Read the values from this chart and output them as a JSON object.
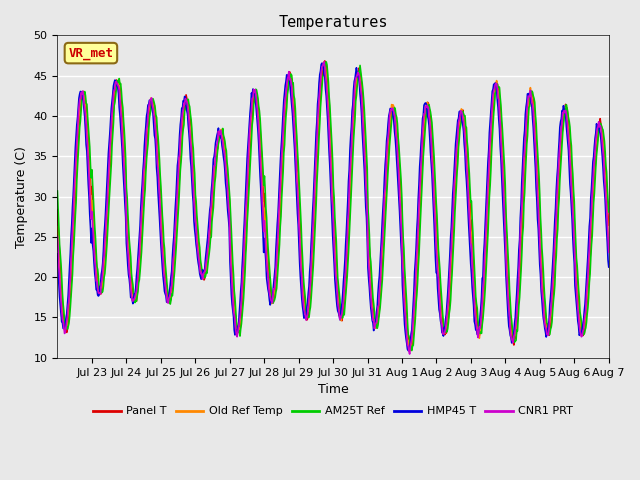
{
  "title": "Temperatures",
  "xlabel": "Time",
  "ylabel": "Temperature (C)",
  "ylim": [
    10,
    50
  ],
  "yticks": [
    10,
    15,
    20,
    25,
    30,
    35,
    40,
    45,
    50
  ],
  "background_color": "#e8e8e8",
  "plot_bg_color": "#e8e8e8",
  "grid_color": "white",
  "annotation_text": "VR_met",
  "annotation_color": "#cc0000",
  "annotation_bg": "#ffff99",
  "annotation_border": "#8B6914",
  "series": [
    "Panel T",
    "Old Ref Temp",
    "AM25T Ref",
    "HMP45 T",
    "CNR1 PRT"
  ],
  "colors": [
    "#dd0000",
    "#ff8800",
    "#00cc00",
    "#0000dd",
    "#cc00cc"
  ],
  "n_days": 16,
  "samples_per_day": 48,
  "xtick_positions": [
    1,
    2,
    3,
    4,
    5,
    6,
    7,
    8,
    9,
    10,
    11,
    12,
    13,
    14,
    15,
    16
  ],
  "xtick_labels": [
    "Jul 23",
    "Jul 24",
    "Jul 25",
    "Jul 26",
    "Jul 27",
    "Jul 28",
    "Jul 29",
    "Jul 30",
    "Jul 31",
    "Aug 1",
    "Aug 2",
    "Aug 3",
    "Aug 4",
    "Aug 5",
    "Aug 6",
    "Aug 7"
  ],
  "daily_maxes": [
    43.0,
    44.5,
    42.0,
    42.0,
    38.0,
    43.0,
    45.0,
    46.5,
    45.5,
    41.0,
    41.5,
    40.5,
    44.0,
    43.0,
    41.0,
    39.0
  ],
  "daily_mins": [
    13.5,
    18.0,
    17.0,
    17.0,
    20.0,
    13.0,
    17.0,
    15.0,
    15.0,
    14.0,
    11.0,
    13.0,
    13.0,
    12.0,
    13.0,
    13.0
  ],
  "phase_shifts": [
    0.0,
    0.04,
    -0.05,
    0.13,
    0.07
  ]
}
